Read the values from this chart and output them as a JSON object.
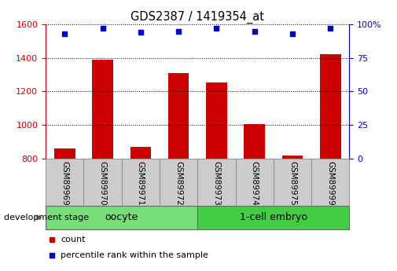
{
  "title": "GDS2387 / 1419354_at",
  "samples": [
    "GSM89969",
    "GSM89970",
    "GSM89971",
    "GSM89972",
    "GSM89973",
    "GSM89974",
    "GSM89975",
    "GSM89999"
  ],
  "counts": [
    860,
    1390,
    870,
    1310,
    1255,
    1005,
    820,
    1420
  ],
  "percentiles": [
    93,
    97,
    94,
    95,
    97,
    95,
    93,
    97
  ],
  "bar_color": "#cc0000",
  "dot_color": "#0000cc",
  "ylim_left": [
    800,
    1600
  ],
  "ylim_right": [
    0,
    100
  ],
  "yticks_left": [
    800,
    1000,
    1200,
    1400,
    1600
  ],
  "yticks_right": [
    0,
    25,
    50,
    75,
    100
  ],
  "left_tick_color": "#cc0000",
  "right_tick_color": "#0000cc",
  "group_label": "development stage",
  "groups": [
    {
      "label": "oocyte",
      "start": 0,
      "end": 3,
      "color": "#77dd77"
    },
    {
      "label": "1-cell embryo",
      "start": 4,
      "end": 7,
      "color": "#44cc44"
    }
  ],
  "legend_count_label": "count",
  "legend_pct_label": "percentile rank within the sample",
  "xticklabel_bg": "#cccccc",
  "xticklabel_border": "#888888"
}
